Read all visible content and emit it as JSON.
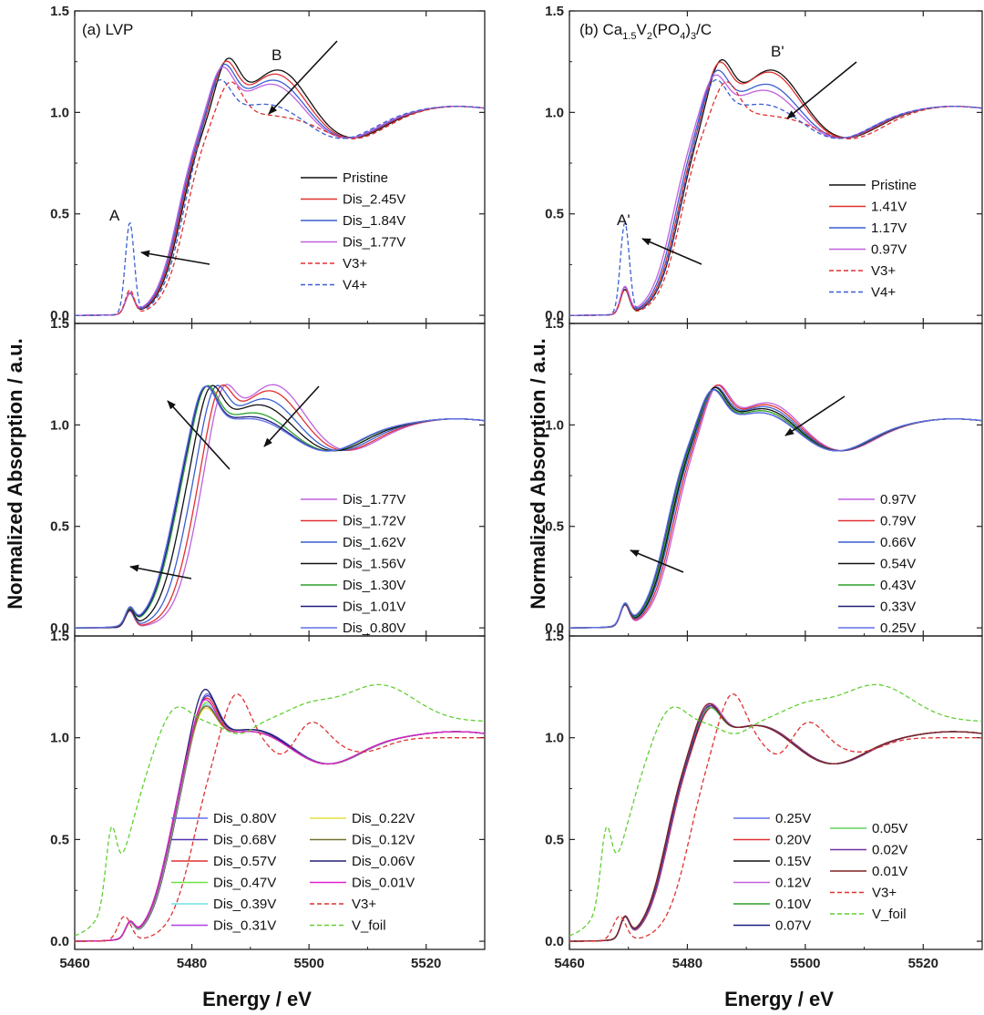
{
  "axis": {
    "xlabel": "Energy / eV",
    "ylabel": "Normalized Absorption / a.u.",
    "xlim": [
      5460,
      5530
    ],
    "ylim": [
      -0.04,
      1.5
    ],
    "xticks": [
      "5460",
      "5480",
      "5500",
      "5520"
    ],
    "yticks": [
      "0.0",
      "0.5",
      "1.0",
      "1.5"
    ]
  },
  "colors": {
    "black": "#111111",
    "red": "#e03030",
    "blue": "#3a5fd0",
    "violet": "#c060e0",
    "green": "#2aa02a",
    "navy": "#1a1a80",
    "periwinkle": "#6070e8",
    "indigo": "#5030b0",
    "lime": "#70e040",
    "cyan": "#70e0e0",
    "magenta": "#b040e0",
    "yellow": "#e8e040",
    "olive": "#707030",
    "darkblue": "#202070",
    "fuchsia": "#e020d0",
    "maroon": "#802020",
    "ltgreen": "#60d060",
    "purple": "#7030a0",
    "dred": "#e03030",
    "dgreen": "#60d030"
  },
  "chart_data": [
    {
      "id": "a-top",
      "type": "line",
      "title": "(a) LVP",
      "annotations": [
        "A",
        "B"
      ],
      "series": [
        {
          "name": "Pristine",
          "style": "solid",
          "color": "black",
          "e0": 5478.2,
          "pk": 5486.0,
          "ph": 1.28,
          "pre": 0.1,
          "shoulder": 0.15
        },
        {
          "name": "Dis_2.45V",
          "style": "solid",
          "color": "red",
          "e0": 5478.0,
          "pk": 5485.6,
          "ph": 1.27,
          "pre": 0.1,
          "shoulder": 0.13
        },
        {
          "name": "Dis_1.84V",
          "style": "solid",
          "color": "blue",
          "e0": 5477.8,
          "pk": 5485.3,
          "ph": 1.26,
          "pre": 0.1,
          "shoulder": 0.1
        },
        {
          "name": "Dis_1.77V",
          "style": "solid",
          "color": "violet",
          "e0": 5477.6,
          "pk": 5485.0,
          "ph": 1.25,
          "pre": 0.1,
          "shoulder": 0.08
        },
        {
          "name": "V3+",
          "style": "dash",
          "color": "red",
          "e0": 5479.0,
          "pk": 5486.5,
          "ph": 1.2,
          "pre": 0.12,
          "shoulder": -0.08
        },
        {
          "name": "V4+",
          "style": "dash",
          "color": "blue",
          "e0": 5478.5,
          "pk": 5484.5,
          "ph": 1.22,
          "pre": 0.45,
          "shoulder": -0.02
        }
      ]
    },
    {
      "id": "b-top",
      "type": "line",
      "title": "(b) Ca1.5V2(PO4)3/C",
      "annotations": [
        "A'",
        "B'"
      ],
      "series": [
        {
          "name": "Pristine",
          "style": "solid",
          "color": "black",
          "e0": 5478.6,
          "pk": 5485.5,
          "ph": 1.28,
          "pre": 0.12,
          "shoulder": 0.15
        },
        {
          "name": "1.41V",
          "style": "solid",
          "color": "red",
          "e0": 5478.3,
          "pk": 5485.2,
          "ph": 1.27,
          "pre": 0.13,
          "shoulder": 0.14
        },
        {
          "name": "1.17V",
          "style": "solid",
          "color": "blue",
          "e0": 5478.0,
          "pk": 5484.8,
          "ph": 1.24,
          "pre": 0.13,
          "shoulder": 0.08
        },
        {
          "name": "0.97V",
          "style": "solid",
          "color": "violet",
          "e0": 5477.6,
          "pk": 5484.5,
          "ph": 1.22,
          "pre": 0.13,
          "shoulder": 0.05
        },
        {
          "name": "V3+",
          "style": "dash",
          "color": "red",
          "e0": 5479.0,
          "pk": 5486.5,
          "ph": 1.2,
          "pre": 0.12,
          "shoulder": -0.08
        },
        {
          "name": "V4+",
          "style": "dash",
          "color": "blue",
          "e0": 5478.5,
          "pk": 5484.5,
          "ph": 1.22,
          "pre": 0.45,
          "shoulder": -0.02
        }
      ]
    },
    {
      "id": "a-mid",
      "type": "line",
      "title": "",
      "annotations": [],
      "series": [
        {
          "name": "Dis_1.77V",
          "style": "solid",
          "color": "violet",
          "e0": 5480.5,
          "pk": 5485.2,
          "ph": 1.26,
          "pre": 0.08,
          "shoulder": 0.14
        },
        {
          "name": "Dis_1.72V",
          "style": "solid",
          "color": "red",
          "e0": 5479.8,
          "pk": 5484.6,
          "ph": 1.26,
          "pre": 0.08,
          "shoulder": 0.11
        },
        {
          "name": "Dis_1.62V",
          "style": "solid",
          "color": "blue",
          "e0": 5478.8,
          "pk": 5483.8,
          "ph": 1.26,
          "pre": 0.08,
          "shoulder": 0.07
        },
        {
          "name": "Dis_1.56V",
          "style": "solid",
          "color": "black",
          "e0": 5477.8,
          "pk": 5483.0,
          "ph": 1.26,
          "pre": 0.08,
          "shoulder": 0.04
        },
        {
          "name": "Dis_1.30V",
          "style": "solid",
          "color": "green",
          "e0": 5476.8,
          "pk": 5482.3,
          "ph": 1.26,
          "pre": 0.08,
          "shoulder": 0.0
        },
        {
          "name": "Dis_1.01V",
          "style": "solid",
          "color": "navy",
          "e0": 5476.6,
          "pk": 5482.1,
          "ph": 1.26,
          "pre": 0.08,
          "shoulder": -0.02
        },
        {
          "name": "Dis_0.80V",
          "style": "solid",
          "color": "periwinkle",
          "e0": 5476.4,
          "pk": 5482.0,
          "ph": 1.26,
          "pre": 0.08,
          "shoulder": -0.03
        }
      ]
    },
    {
      "id": "b-mid",
      "type": "line",
      "title": "",
      "annotations": [],
      "series": [
        {
          "name": "0.97V",
          "style": "solid",
          "color": "violet",
          "e0": 5477.8,
          "pk": 5485.0,
          "ph": 1.23,
          "pre": 0.1,
          "shoulder": 0.05
        },
        {
          "name": "0.79V",
          "style": "solid",
          "color": "red",
          "e0": 5477.5,
          "pk": 5484.8,
          "ph": 1.23,
          "pre": 0.1,
          "shoulder": 0.04
        },
        {
          "name": "0.66V",
          "style": "solid",
          "color": "blue",
          "e0": 5477.2,
          "pk": 5484.6,
          "ph": 1.22,
          "pre": 0.1,
          "shoulder": 0.03
        },
        {
          "name": "0.54V",
          "style": "solid",
          "color": "black",
          "e0": 5477.0,
          "pk": 5484.4,
          "ph": 1.22,
          "pre": 0.1,
          "shoulder": 0.02
        },
        {
          "name": "0.43V",
          "style": "solid",
          "color": "green",
          "e0": 5476.8,
          "pk": 5484.3,
          "ph": 1.21,
          "pre": 0.1,
          "shoulder": 0.01
        },
        {
          "name": "0.33V",
          "style": "solid",
          "color": "darkblue",
          "e0": 5476.6,
          "pk": 5484.2,
          "ph": 1.21,
          "pre": 0.1,
          "shoulder": 0.0
        },
        {
          "name": "0.25V",
          "style": "solid",
          "color": "periwinkle",
          "e0": 5476.5,
          "pk": 5484.1,
          "ph": 1.21,
          "pre": 0.1,
          "shoulder": 0.0
        }
      ]
    },
    {
      "id": "a-bot",
      "type": "line",
      "title": "",
      "annotations": [],
      "series": [
        {
          "name": "Dis_0.80V",
          "style": "solid",
          "color": "periwinkle",
          "e0": 5476.5,
          "pk": 5482.3,
          "ph": 1.28,
          "pre": 0.07,
          "shoulder": -0.02
        },
        {
          "name": "Dis_0.68V",
          "style": "solid",
          "color": "indigo",
          "e0": 5476.5,
          "pk": 5482.3,
          "ph": 1.27,
          "pre": 0.07,
          "shoulder": -0.02
        },
        {
          "name": "Dis_0.57V",
          "style": "solid",
          "color": "red",
          "e0": 5476.4,
          "pk": 5482.2,
          "ph": 1.26,
          "pre": 0.07,
          "shoulder": -0.03
        },
        {
          "name": "Dis_0.47V",
          "style": "solid",
          "color": "lime",
          "e0": 5476.4,
          "pk": 5482.2,
          "ph": 1.24,
          "pre": 0.07,
          "shoulder": -0.03
        },
        {
          "name": "Dis_0.39V",
          "style": "solid",
          "color": "cyan",
          "e0": 5476.3,
          "pk": 5482.1,
          "ph": 1.23,
          "pre": 0.07,
          "shoulder": -0.03
        },
        {
          "name": "Dis_0.31V",
          "style": "solid",
          "color": "magenta",
          "e0": 5476.3,
          "pk": 5482.1,
          "ph": 1.22,
          "pre": 0.07,
          "shoulder": -0.03
        },
        {
          "name": "Dis_0.22V",
          "style": "solid",
          "color": "yellow",
          "e0": 5476.2,
          "pk": 5482.0,
          "ph": 1.21,
          "pre": 0.07,
          "shoulder": -0.03
        },
        {
          "name": "Dis_0.12V",
          "style": "solid",
          "color": "olive",
          "e0": 5476.2,
          "pk": 5482.0,
          "ph": 1.22,
          "pre": 0.07,
          "shoulder": -0.03
        },
        {
          "name": "Dis_0.06V",
          "style": "solid",
          "color": "darkblue",
          "e0": 5476.1,
          "pk": 5482.0,
          "ph": 1.3,
          "pre": 0.07,
          "shoulder": -0.02
        },
        {
          "name": "Dis_0.01V",
          "style": "solid",
          "color": "fuchsia",
          "e0": 5476.1,
          "pk": 5482.0,
          "ph": 1.25,
          "pre": 0.07,
          "shoulder": -0.03
        },
        {
          "name": "V3+",
          "style": "dash",
          "color": "dred",
          "kind": "v3"
        },
        {
          "name": "V_foil",
          "style": "dash",
          "color": "dgreen",
          "kind": "foil"
        }
      ]
    },
    {
      "id": "b-bot",
      "type": "line",
      "title": "",
      "annotations": [],
      "series": [
        {
          "name": "0.25V",
          "style": "solid",
          "color": "periwinkle",
          "e0": 5476.8,
          "pk": 5483.8,
          "ph": 1.2,
          "pre": 0.1,
          "shoulder": 0.0
        },
        {
          "name": "0.20V",
          "style": "solid",
          "color": "red",
          "e0": 5476.8,
          "pk": 5483.8,
          "ph": 1.19,
          "pre": 0.1,
          "shoulder": 0.0
        },
        {
          "name": "0.15V",
          "style": "solid",
          "color": "black",
          "e0": 5476.7,
          "pk": 5483.7,
          "ph": 1.2,
          "pre": 0.1,
          "shoulder": 0.0
        },
        {
          "name": "0.12V",
          "style": "solid",
          "color": "violet",
          "e0": 5476.7,
          "pk": 5483.7,
          "ph": 1.21,
          "pre": 0.1,
          "shoulder": 0.0
        },
        {
          "name": "0.10V",
          "style": "solid",
          "color": "green",
          "e0": 5476.6,
          "pk": 5483.6,
          "ph": 1.2,
          "pre": 0.1,
          "shoulder": 0.0
        },
        {
          "name": "0.07V",
          "style": "solid",
          "color": "navy",
          "e0": 5476.6,
          "pk": 5483.6,
          "ph": 1.19,
          "pre": 0.1,
          "shoulder": 0.0
        },
        {
          "name": "0.05V",
          "style": "solid",
          "color": "ltgreen",
          "e0": 5476.5,
          "pk": 5483.5,
          "ph": 1.19,
          "pre": 0.1,
          "shoulder": 0.0
        },
        {
          "name": "0.02V",
          "style": "solid",
          "color": "purple",
          "e0": 5476.5,
          "pk": 5483.5,
          "ph": 1.2,
          "pre": 0.1,
          "shoulder": 0.0
        },
        {
          "name": "0.01V",
          "style": "solid",
          "color": "maroon",
          "e0": 5476.4,
          "pk": 5483.4,
          "ph": 1.21,
          "pre": 0.1,
          "shoulder": 0.0
        },
        {
          "name": "V3+",
          "style": "dash",
          "color": "dred",
          "kind": "v3"
        },
        {
          "name": "V_foil",
          "style": "dash",
          "color": "dgreen",
          "kind": "foil"
        }
      ]
    }
  ]
}
